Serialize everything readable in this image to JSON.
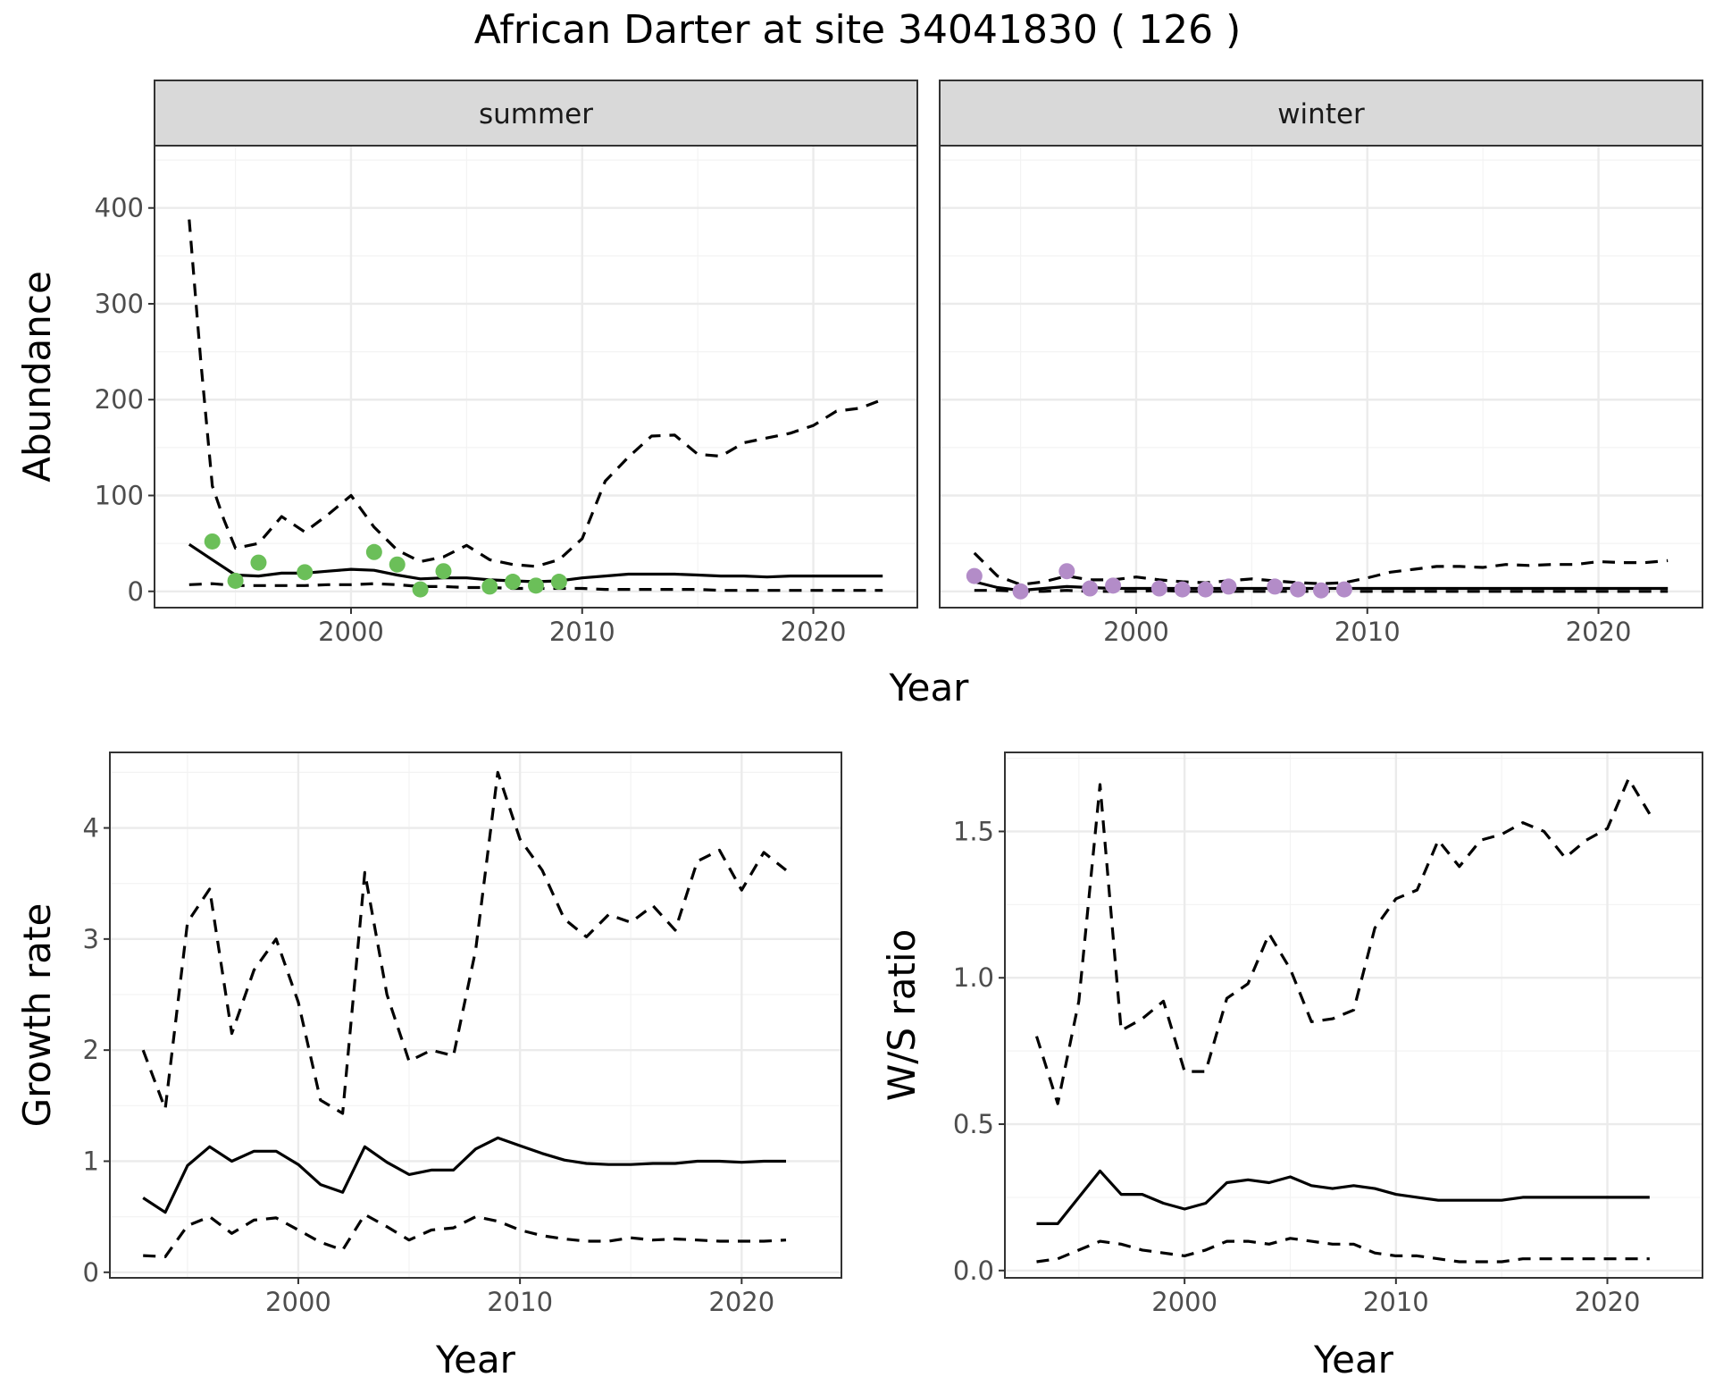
{
  "title": "African Darter at site 34041830 ( 126 )",
  "top_xlabel": "Year",
  "chart_data": [
    {
      "type": "line",
      "name": "abundance",
      "ylabel": "Abundance",
      "xlabel": "",
      "xlim": [
        1991.5,
        2024.5
      ],
      "ylim": [
        -17,
        465
      ],
      "x_ticks": [
        2000,
        2010,
        2020
      ],
      "y_ticks": [
        0,
        100,
        200,
        300,
        400
      ],
      "grid": true,
      "facets": [
        {
          "strip": "summer",
          "point_color": "#6BBF59",
          "observed": {
            "x": [
              1994,
              1995,
              1996,
              1998,
              2001,
              2002,
              2003,
              2004,
              2006,
              2007,
              2008,
              2009
            ],
            "y": [
              52,
              11,
              30,
              20,
              41,
              28,
              2,
              21,
              5,
              10,
              6,
              10
            ]
          },
          "lines": [
            {
              "style": "solid",
              "x": [
                1993,
                1994,
                1995,
                1996,
                1997,
                1998,
                1999,
                2000,
                2001,
                2002,
                2003,
                2004,
                2005,
                2006,
                2007,
                2008,
                2009,
                2010,
                2011,
                2012,
                2013,
                2014,
                2015,
                2016,
                2017,
                2018,
                2019,
                2020,
                2021,
                2022,
                2023
              ],
              "y": [
                49,
                33,
                17,
                16,
                19,
                19,
                21,
                23,
                22,
                17,
                13,
                14,
                14,
                12,
                11,
                10,
                11,
                14,
                16,
                18,
                18,
                18,
                17,
                16,
                16,
                15,
                16,
                16,
                16,
                16,
                16
              ]
            },
            {
              "style": "dashed",
              "x": [
                1993,
                1993.5,
                1994,
                1994.5,
                1995,
                1996,
                1997,
                1998,
                1999,
                2000,
                2001,
                2002,
                2003,
                2004,
                2005,
                2006,
                2007,
                2008,
                2009,
                2010,
                2011,
                2012,
                2013,
                2014,
                2015,
                2016,
                2017,
                2018,
                2019,
                2020,
                2021,
                2022,
                2023
              ],
              "y": [
                388,
                240,
                110,
                75,
                45,
                50,
                78,
                62,
                80,
                100,
                67,
                43,
                31,
                36,
                48,
                33,
                28,
                26,
                33,
                55,
                115,
                140,
                162,
                163,
                143,
                141,
                155,
                160,
                165,
                173,
                188,
                191,
                200
              ]
            },
            {
              "style": "dashed",
              "x": [
                1993,
                1994,
                1995,
                1996,
                1997,
                1998,
                1999,
                2000,
                2001,
                2002,
                2003,
                2004,
                2005,
                2006,
                2007,
                2008,
                2009,
                2010,
                2011,
                2012,
                2013,
                2014,
                2015,
                2016,
                2017,
                2018,
                2019,
                2020,
                2021,
                2022,
                2023
              ],
              "y": [
                7,
                8,
                6,
                6,
                6,
                6,
                7,
                7,
                8,
                7,
                5,
                5,
                4,
                4,
                3,
                3,
                3,
                3,
                2,
                2,
                2,
                2,
                2,
                1,
                1,
                1,
                1,
                1,
                1,
                1,
                1
              ]
            }
          ]
        },
        {
          "strip": "winter",
          "point_color": "#B38CC8",
          "observed": {
            "x": [
              1993,
              1995,
              1997,
              1998,
              1999,
              2001,
              2002,
              2003,
              2004,
              2006,
              2007,
              2008,
              2009
            ],
            "y": [
              16,
              0,
              21,
              3,
              6,
              3,
              2,
              2,
              5,
              5,
              2,
              1,
              2
            ]
          },
          "lines": [
            {
              "style": "solid",
              "x": [
                1993,
                1994,
                1995,
                1996,
                1997,
                1998,
                1999,
                2000,
                2001,
                2002,
                2003,
                2004,
                2005,
                2006,
                2007,
                2008,
                2009,
                2010,
                2011,
                2012,
                2013,
                2014,
                2015,
                2016,
                2017,
                2018,
                2019,
                2020,
                2021,
                2022,
                2023
              ],
              "y": [
                10,
                4,
                1,
                3,
                5,
                4,
                3,
                3,
                3,
                3,
                3,
                3,
                3,
                3,
                3,
                3,
                3,
                3,
                3,
                3,
                3,
                3,
                3,
                3,
                3,
                3,
                3,
                3,
                3,
                3,
                3
              ]
            },
            {
              "style": "dashed",
              "x": [
                1993,
                1994,
                1995,
                1996,
                1997,
                1998,
                1999,
                2000,
                2001,
                2002,
                2003,
                2004,
                2005,
                2006,
                2007,
                2008,
                2009,
                2010,
                2011,
                2012,
                2013,
                2014,
                2015,
                2016,
                2017,
                2018,
                2019,
                2020,
                2021,
                2022,
                2023
              ],
              "y": [
                40,
                16,
                7,
                10,
                16,
                12,
                12,
                15,
                12,
                10,
                9,
                11,
                13,
                11,
                9,
                8,
                9,
                14,
                20,
                23,
                26,
                26,
                25,
                28,
                27,
                28,
                28,
                31,
                30,
                30,
                32
              ]
            },
            {
              "style": "dashed",
              "x": [
                1993,
                1994,
                1995,
                1996,
                1997,
                1998,
                1999,
                2000,
                2001,
                2002,
                2003,
                2004,
                2005,
                2006,
                2007,
                2008,
                2009,
                2010,
                2011,
                2012,
                2013,
                2014,
                2015,
                2016,
                2017,
                2018,
                2019,
                2020,
                2021,
                2022,
                2023
              ],
              "y": [
                1,
                1,
                0,
                0,
                1,
                0,
                0,
                0,
                1,
                0,
                0,
                0,
                0,
                0,
                0,
                0,
                0,
                0,
                0,
                0,
                0,
                0,
                0,
                0,
                0,
                0,
                0,
                0,
                0,
                0,
                0
              ]
            }
          ]
        }
      ]
    },
    {
      "type": "line",
      "name": "growth",
      "ylabel": "Growth rate",
      "xlabel": "Year",
      "xlim": [
        1991.5,
        2024.5
      ],
      "ylim": [
        -0.05,
        4.68
      ],
      "x_ticks": [
        2000,
        2010,
        2020
      ],
      "y_ticks": [
        0,
        1,
        2,
        3,
        4
      ],
      "grid": true,
      "lines": [
        {
          "style": "solid",
          "x": [
            1993,
            1994,
            1995,
            1996,
            1997,
            1998,
            1999,
            2000,
            2001,
            2002,
            2003,
            2004,
            2005,
            2006,
            2007,
            2008,
            2009,
            2010,
            2011,
            2012,
            2013,
            2014,
            2015,
            2016,
            2017,
            2018,
            2019,
            2020,
            2021,
            2022
          ],
          "y": [
            0.67,
            0.54,
            0.96,
            1.13,
            1.0,
            1.09,
            1.09,
            0.97,
            0.79,
            0.72,
            1.13,
            0.99,
            0.88,
            0.92,
            0.92,
            1.11,
            1.21,
            1.14,
            1.07,
            1.01,
            0.98,
            0.97,
            0.97,
            0.98,
            0.98,
            1.0,
            1.0,
            0.99,
            1.0,
            1.0
          ]
        },
        {
          "style": "dashed",
          "x": [
            1993,
            1994,
            1995,
            1996,
            1997,
            1998,
            1999,
            2000,
            2001,
            2002,
            2003,
            2004,
            2005,
            2006,
            2007,
            2008,
            2009,
            2010,
            2011,
            2012,
            2013,
            2014,
            2015,
            2016,
            2017,
            2018,
            2019,
            2020,
            2021,
            2022
          ],
          "y": [
            2.0,
            1.47,
            3.15,
            3.45,
            2.15,
            2.72,
            3.0,
            2.43,
            1.55,
            1.43,
            3.6,
            2.5,
            1.9,
            2.0,
            1.95,
            2.9,
            4.5,
            3.9,
            3.62,
            3.18,
            3.02,
            3.22,
            3.15,
            3.3,
            3.08,
            3.7,
            3.8,
            3.44,
            3.78,
            3.62
          ]
        },
        {
          "style": "dashed",
          "x": [
            1993,
            1994,
            1995,
            1996,
            1997,
            1998,
            1999,
            2000,
            2001,
            2002,
            2003,
            2004,
            2005,
            2006,
            2007,
            2008,
            2009,
            2010,
            2011,
            2012,
            2013,
            2014,
            2015,
            2016,
            2017,
            2018,
            2019,
            2020,
            2021,
            2022
          ],
          "y": [
            0.15,
            0.14,
            0.42,
            0.5,
            0.35,
            0.47,
            0.49,
            0.38,
            0.27,
            0.2,
            0.52,
            0.41,
            0.29,
            0.38,
            0.4,
            0.5,
            0.46,
            0.38,
            0.33,
            0.3,
            0.28,
            0.28,
            0.31,
            0.29,
            0.3,
            0.29,
            0.28,
            0.28,
            0.28,
            0.29
          ]
        }
      ]
    },
    {
      "type": "line",
      "name": "ws_ratio",
      "ylabel": "W/S ratio",
      "xlabel": "Year",
      "xlim": [
        1991.5,
        2024.5
      ],
      "ylim": [
        -0.025,
        1.77
      ],
      "x_ticks": [
        2000,
        2010,
        2020
      ],
      "y_ticks": [
        0.0,
        0.5,
        1.0,
        1.5
      ],
      "y_tick_labels": [
        "0.0",
        "0.5",
        "1.0",
        "1.5"
      ],
      "grid": true,
      "lines": [
        {
          "style": "solid",
          "x": [
            1993,
            1994,
            1995,
            1996,
            1997,
            1998,
            1999,
            2000,
            2001,
            2002,
            2003,
            2004,
            2005,
            2006,
            2007,
            2008,
            2009,
            2010,
            2011,
            2012,
            2013,
            2014,
            2015,
            2016,
            2017,
            2018,
            2019,
            2020,
            2021,
            2022
          ],
          "y": [
            0.16,
            0.16,
            0.25,
            0.34,
            0.26,
            0.26,
            0.23,
            0.21,
            0.23,
            0.3,
            0.31,
            0.3,
            0.32,
            0.29,
            0.28,
            0.29,
            0.28,
            0.26,
            0.25,
            0.24,
            0.24,
            0.24,
            0.24,
            0.25,
            0.25,
            0.25,
            0.25,
            0.25,
            0.25,
            0.25
          ]
        },
        {
          "style": "dashed",
          "x": [
            1993,
            1994,
            1995,
            1996,
            1997,
            1998,
            1999,
            2000,
            2001,
            2002,
            2003,
            2004,
            2005,
            2006,
            2007,
            2008,
            2009,
            2010,
            2011,
            2012,
            2013,
            2014,
            2015,
            2016,
            2017,
            2018,
            2019,
            2020,
            2021,
            2022
          ],
          "y": [
            0.8,
            0.57,
            0.92,
            1.66,
            0.82,
            0.86,
            0.92,
            0.68,
            0.68,
            0.93,
            0.98,
            1.15,
            1.03,
            0.85,
            0.86,
            0.89,
            1.17,
            1.27,
            1.3,
            1.47,
            1.38,
            1.47,
            1.49,
            1.53,
            1.5,
            1.41,
            1.47,
            1.51,
            1.68,
            1.56
          ]
        },
        {
          "style": "dashed",
          "x": [
            1993,
            1994,
            1995,
            1996,
            1997,
            1998,
            1999,
            2000,
            2001,
            2002,
            2003,
            2004,
            2005,
            2006,
            2007,
            2008,
            2009,
            2010,
            2011,
            2012,
            2013,
            2014,
            2015,
            2016,
            2017,
            2018,
            2019,
            2020,
            2021,
            2022
          ],
          "y": [
            0.03,
            0.04,
            0.07,
            0.1,
            0.09,
            0.07,
            0.06,
            0.05,
            0.07,
            0.1,
            0.1,
            0.09,
            0.11,
            0.1,
            0.09,
            0.09,
            0.06,
            0.05,
            0.05,
            0.04,
            0.03,
            0.03,
            0.03,
            0.04,
            0.04,
            0.04,
            0.04,
            0.04,
            0.04,
            0.04
          ]
        }
      ]
    }
  ]
}
